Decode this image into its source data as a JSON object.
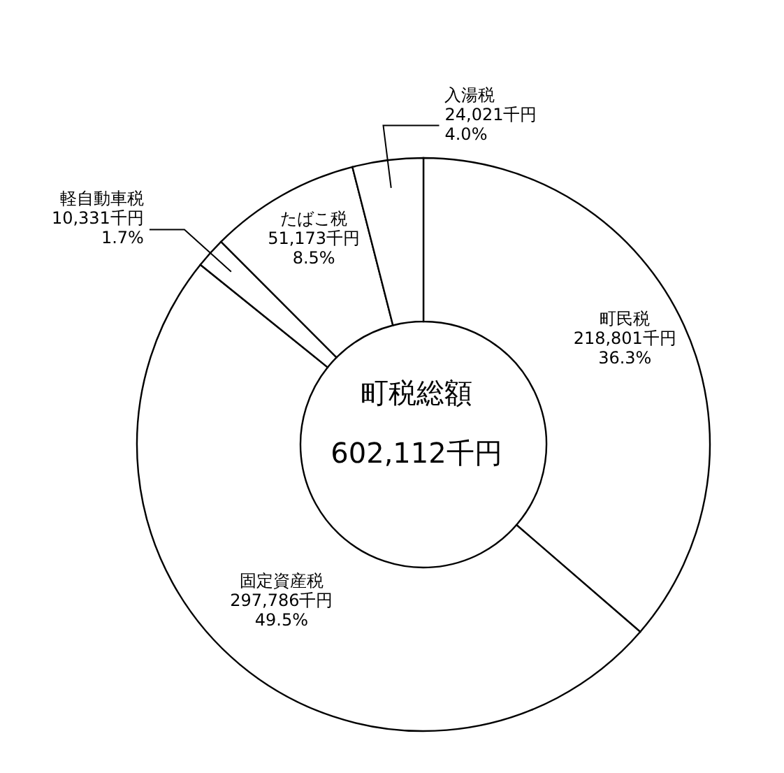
{
  "chart_data": {
    "type": "donut",
    "title": "町税総額",
    "subtitle": "602,112千円",
    "categories": [
      "町民税",
      "固定資産税",
      "軽自動車税",
      "たばこ税",
      "入湯税"
    ],
    "values": [
      218801,
      297786,
      10331,
      51173,
      24021
    ],
    "value_labels": [
      "218,801千円\n36.3%",
      "297,786千円\n49.5%",
      "10,331千円\n1.7%",
      "51,173千円\n8.5%",
      "24,021千円\n4.0%"
    ],
    "colors": [
      "#ffffff",
      "#ffffff",
      "#ffffff",
      "#ffffff",
      "#ffffff"
    ],
    "legend": false
  }
}
